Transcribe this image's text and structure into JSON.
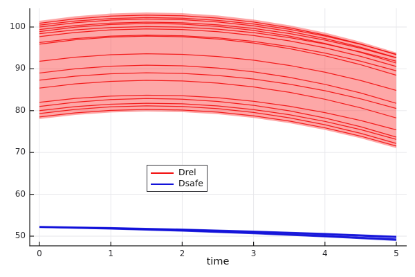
{
  "figure": {
    "background": "#ffffff"
  },
  "axis": {
    "spine_color": "#1c1c1c",
    "grid_color": "#e6e6ea",
    "tick_label_color": "#2a2a2e"
  },
  "legend": {
    "items": [
      {
        "label": "Drel",
        "color": "#f20d0d"
      },
      {
        "label": "Dsafe",
        "color": "#1212d9"
      }
    ]
  },
  "chart_data": {
    "type": "line",
    "title": "",
    "xlabel": "time",
    "ylabel": "",
    "xlim": [
      -0.15,
      5.15
    ],
    "ylim": [
      47.5,
      104.5
    ],
    "xticks": [
      0,
      1,
      2,
      3,
      4,
      5
    ],
    "yticks": [
      50,
      60,
      70,
      80,
      90,
      100
    ],
    "grid": true,
    "legend_position": "inside-center-left",
    "series": [
      {
        "name": "Drel",
        "color": "#f20d0d",
        "band_fill": "#fa3c3c",
        "band_opacity": 0.45,
        "x": [
          0,
          0.5,
          1,
          1.5,
          2,
          2.5,
          3,
          3.5,
          4,
          4.5,
          5
        ],
        "band_top": [
          101.5,
          102.56,
          103.22,
          103.47,
          103.31,
          102.76,
          101.79,
          100.42,
          98.65,
          96.47,
          93.89
        ],
        "band_bottom": [
          78.0,
          78.97,
          79.57,
          79.8,
          79.66,
          79.15,
          78.27,
          77.02,
          75.4,
          73.4,
          71.04
        ],
        "trajectories": [
          [
            100.9,
            101.95,
            102.6,
            102.84,
            102.69,
            102.14,
            101.19,
            99.84,
            98.08,
            95.93,
            93.38
          ],
          [
            100.45,
            101.42,
            102.02,
            102.25,
            102.11,
            101.6,
            100.72,
            99.47,
            97.85,
            95.86,
            93.49
          ],
          [
            100.0,
            101.02,
            101.65,
            101.9,
            101.75,
            101.21,
            100.28,
            98.96,
            97.25,
            95.16,
            92.67
          ],
          [
            99.4,
            100.34,
            100.93,
            101.15,
            101.01,
            100.52,
            99.66,
            98.44,
            96.87,
            94.93,
            92.63
          ],
          [
            98.9,
            99.95,
            100.6,
            100.84,
            100.69,
            100.14,
            99.19,
            97.84,
            96.08,
            93.93,
            91.38
          ],
          [
            98.4,
            99.32,
            99.88,
            100.1,
            99.97,
            99.49,
            98.65,
            97.47,
            95.94,
            94.05,
            91.82
          ],
          [
            97.7,
            98.7,
            99.31,
            99.55,
            99.4,
            98.88,
            97.97,
            96.69,
            95.03,
            92.98,
            90.56
          ],
          [
            96.3,
            97.24,
            97.83,
            98.05,
            97.91,
            97.42,
            96.56,
            95.34,
            93.77,
            91.83,
            89.53
          ],
          [
            95.9,
            96.94,
            97.58,
            97.82,
            97.67,
            97.13,
            96.18,
            94.85,
            93.12,
            90.99,
            88.47
          ],
          [
            91.8,
            92.77,
            93.37,
            93.6,
            93.46,
            92.95,
            92.07,
            90.82,
            89.2,
            87.21,
            84.84
          ],
          [
            89.0,
            90.01,
            90.63,
            90.87,
            90.73,
            90.19,
            89.28,
            87.98,
            86.29,
            84.23,
            81.76
          ],
          [
            87.3,
            88.24,
            88.83,
            89.05,
            88.91,
            88.42,
            87.56,
            86.34,
            84.77,
            82.83,
            80.53
          ],
          [
            85.4,
            86.4,
            87.01,
            87.25,
            87.1,
            86.58,
            85.67,
            84.39,
            82.73,
            80.68,
            78.26
          ],
          [
            82.0,
            82.92,
            83.48,
            83.7,
            83.57,
            83.09,
            82.25,
            81.07,
            79.54,
            77.65,
            75.42
          ],
          [
            81.0,
            82.02,
            82.65,
            82.9,
            82.75,
            82.21,
            81.28,
            79.96,
            78.25,
            76.16,
            73.67
          ],
          [
            80.0,
            80.96,
            81.55,
            81.77,
            81.64,
            81.13,
            80.26,
            79.03,
            77.43,
            75.47,
            73.14
          ],
          [
            79.3,
            80.3,
            80.91,
            81.15,
            81.0,
            80.48,
            79.57,
            78.29,
            76.63,
            74.58,
            72.16
          ],
          [
            78.5,
            79.47,
            80.07,
            80.3,
            80.16,
            79.65,
            78.77,
            77.52,
            75.9,
            73.91,
            71.54
          ]
        ]
      },
      {
        "name": "Dsafe",
        "color": "#1212d9",
        "x": [
          0,
          1,
          2,
          3,
          4,
          5
        ],
        "trajectories": [
          [
            52.3,
            52.03,
            51.66,
            51.19,
            50.62,
            49.95
          ],
          [
            52.2,
            51.95,
            51.59,
            51.13,
            50.57,
            49.9
          ],
          [
            52.15,
            51.85,
            51.46,
            50.97,
            50.38,
            49.7
          ],
          [
            52.25,
            51.94,
            51.53,
            51.02,
            50.41,
            49.7
          ],
          [
            52.1,
            51.77,
            51.32,
            50.77,
            50.1,
            49.33
          ],
          [
            52.2,
            51.84,
            51.37,
            50.78,
            50.07,
            49.25
          ],
          [
            52.1,
            51.72,
            51.22,
            50.6,
            49.86,
            49.0
          ],
          [
            52.15,
            51.79,
            51.3,
            50.69,
            49.96,
            49.1
          ]
        ]
      }
    ]
  }
}
